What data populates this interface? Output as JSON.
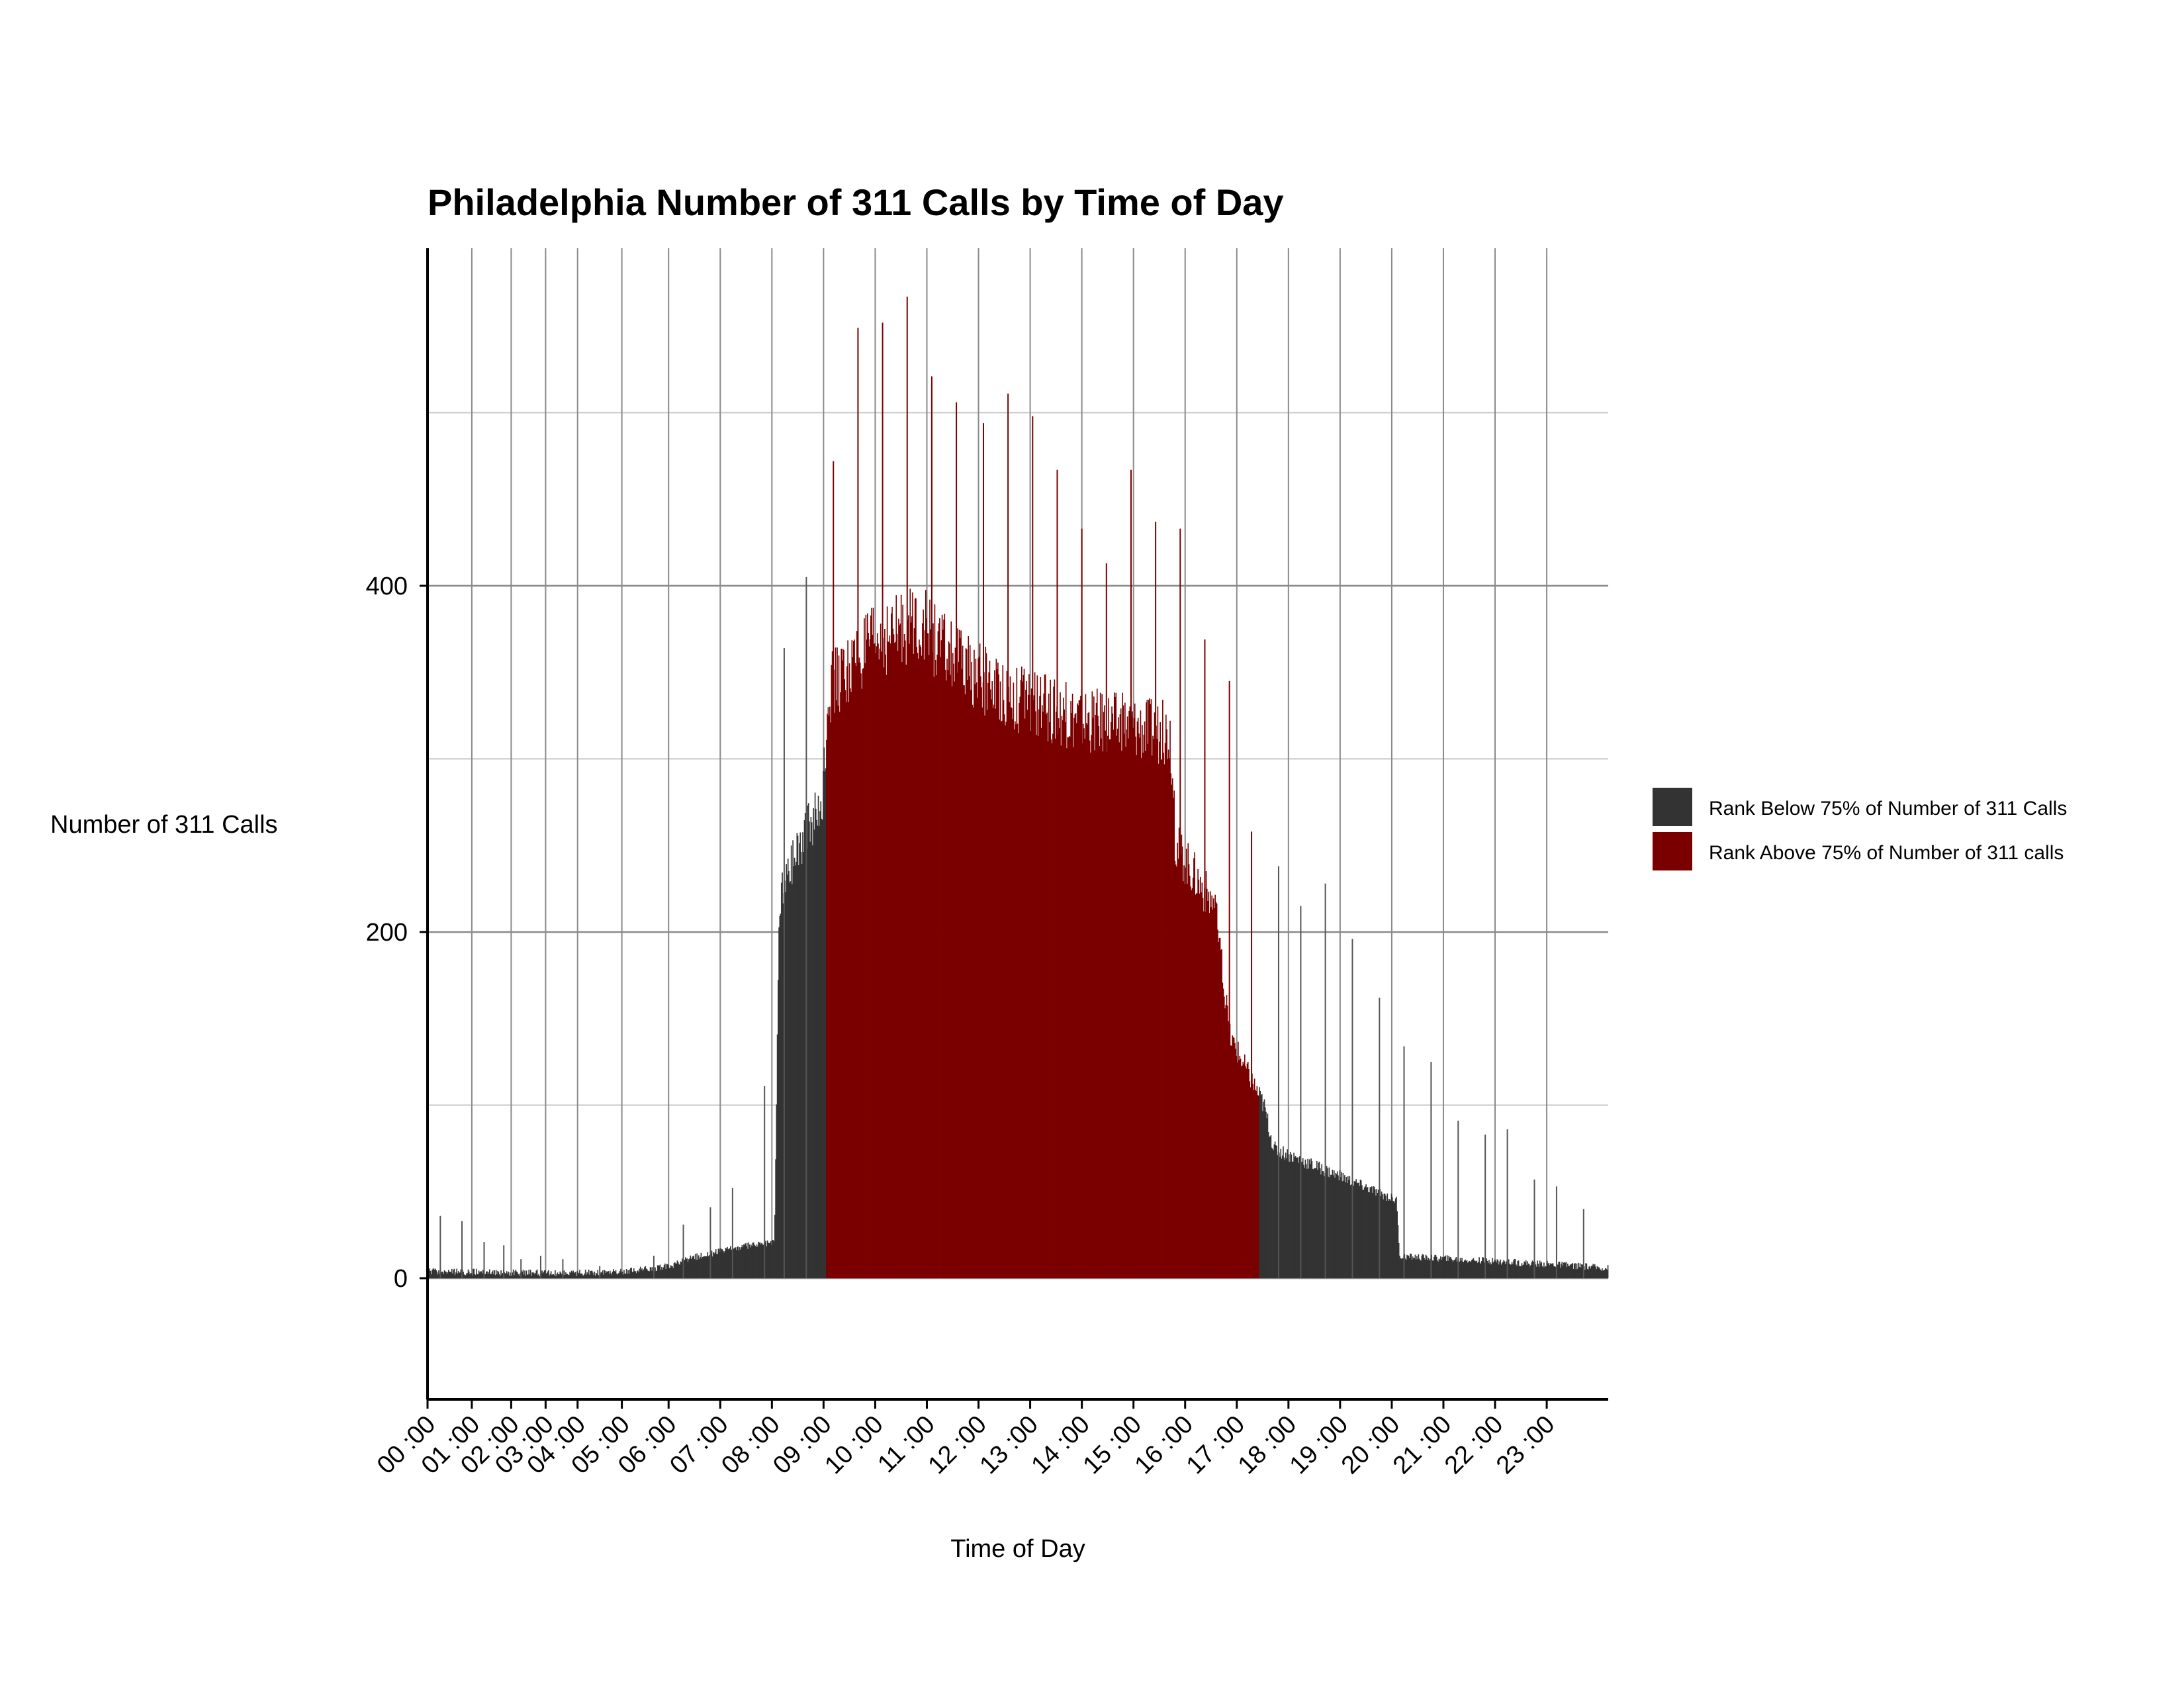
{
  "chart_data": {
    "type": "bar",
    "title": "Philadelphia Number of 311 Calls by Time of  Day",
    "xlabel": "Time of Day",
    "ylabel": "Number of 311 Calls",
    "ylim": [
      -70,
      595
    ],
    "xlim_hours": [
      0,
      24
    ],
    "y_ticks": [
      0,
      200,
      400
    ],
    "x_tick_labels": [
      "00 :00",
      "01 :00",
      "02 :00",
      "03 :00",
      "04 :00",
      "05 :00",
      "06 :00",
      "07 :00",
      "08 :00",
      "09 :00",
      "10 :00",
      "11 :00",
      "12 :00",
      "13 :00",
      "14 :00",
      "15 :00",
      "16 :00",
      "17 :00",
      "18 :00",
      "19 :00",
      "20 :00",
      "21 :00",
      "22 :00",
      "23 :00"
    ],
    "x_tick_hours": [
      0,
      0.9,
      1.7,
      2.4,
      3.05,
      3.95,
      4.9,
      5.95,
      7.0,
      8.05,
      9.1,
      10.15,
      11.2,
      12.25,
      13.3,
      14.35,
      15.4,
      16.45,
      17.5,
      18.55,
      19.6,
      20.65,
      21.7,
      22.75
    ],
    "grid": true,
    "legend_position": "right",
    "bin_minutes": 1,
    "series": [
      {
        "name": "Rank Below 75% of Number of 311 Calls",
        "color": "#333333"
      },
      {
        "name": "Rank Above 75% of Number of 311 calls",
        "color": "#7a0000"
      }
    ],
    "above_75_range_hours": [
      8.1,
      16.9
    ],
    "profile": [
      [
        0.0,
        3
      ],
      [
        3.0,
        2
      ],
      [
        4.0,
        3
      ],
      [
        4.9,
        6
      ],
      [
        5.5,
        12
      ],
      [
        6.5,
        18
      ],
      [
        7.05,
        20
      ],
      [
        7.15,
        220
      ],
      [
        7.5,
        250
      ],
      [
        8.0,
        270
      ],
      [
        8.15,
        340
      ],
      [
        9.0,
        365
      ],
      [
        10.0,
        380
      ],
      [
        10.4,
        365
      ],
      [
        11.0,
        350
      ],
      [
        12.0,
        335
      ],
      [
        13.0,
        325
      ],
      [
        14.0,
        320
      ],
      [
        15.1,
        315
      ],
      [
        15.2,
        250
      ],
      [
        16.0,
        215
      ],
      [
        16.3,
        140
      ],
      [
        17.0,
        100
      ],
      [
        17.2,
        75
      ],
      [
        19.7,
        45
      ],
      [
        19.75,
        12
      ],
      [
        21.0,
        10
      ],
      [
        23.0,
        7
      ],
      [
        24.0,
        5
      ]
    ],
    "spikes": [
      {
        "hour": 0.26,
        "value": 36
      },
      {
        "hour": 0.7,
        "value": 33
      },
      {
        "hour": 1.15,
        "value": 21
      },
      {
        "hour": 1.55,
        "value": 19
      },
      {
        "hour": 1.9,
        "value": 11
      },
      {
        "hour": 2.3,
        "value": 13
      },
      {
        "hour": 2.75,
        "value": 11
      },
      {
        "hour": 3.5,
        "value": 7
      },
      {
        "hour": 4.6,
        "value": 13
      },
      {
        "hour": 5.2,
        "value": 31
      },
      {
        "hour": 5.75,
        "value": 41
      },
      {
        "hour": 6.2,
        "value": 52
      },
      {
        "hour": 6.85,
        "value": 111
      },
      {
        "hour": 7.25,
        "value": 364
      },
      {
        "hour": 7.7,
        "value": 405
      },
      {
        "hour": 8.25,
        "value": 472
      },
      {
        "hour": 8.75,
        "value": 549
      },
      {
        "hour": 9.25,
        "value": 552
      },
      {
        "hour": 9.75,
        "value": 567
      },
      {
        "hour": 10.25,
        "value": 521
      },
      {
        "hour": 10.75,
        "value": 506
      },
      {
        "hour": 11.3,
        "value": 494
      },
      {
        "hour": 11.8,
        "value": 511
      },
      {
        "hour": 12.3,
        "value": 498
      },
      {
        "hour": 12.8,
        "value": 467
      },
      {
        "hour": 13.3,
        "value": 433
      },
      {
        "hour": 13.8,
        "value": 413
      },
      {
        "hour": 14.3,
        "value": 467
      },
      {
        "hour": 14.8,
        "value": 437
      },
      {
        "hour": 15.3,
        "value": 433
      },
      {
        "hour": 15.8,
        "value": 369
      },
      {
        "hour": 16.3,
        "value": 345
      },
      {
        "hour": 16.75,
        "value": 258
      },
      {
        "hour": 17.3,
        "value": 238
      },
      {
        "hour": 17.75,
        "value": 215
      },
      {
        "hour": 18.25,
        "value": 228
      },
      {
        "hour": 18.8,
        "value": 196
      },
      {
        "hour": 19.35,
        "value": 162
      },
      {
        "hour": 19.85,
        "value": 134
      },
      {
        "hour": 20.4,
        "value": 125
      },
      {
        "hour": 20.95,
        "value": 91
      },
      {
        "hour": 21.5,
        "value": 83
      },
      {
        "hour": 21.95,
        "value": 86
      },
      {
        "hour": 22.5,
        "value": 57
      },
      {
        "hour": 22.95,
        "value": 53
      },
      {
        "hour": 23.5,
        "value": 40
      }
    ]
  }
}
